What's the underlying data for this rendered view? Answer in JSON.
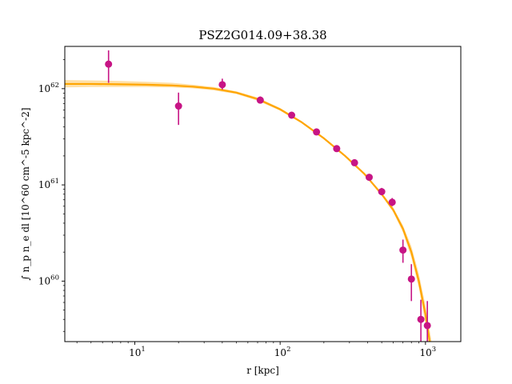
{
  "chart_data": {
    "type": "scatter",
    "title": "PSZ2G014.09+38.38",
    "xlabel": "r [kpc]",
    "ylabel": "∫ n_p n_e dl [10^60 cm^-5 kpc^-2]",
    "xscale": "log",
    "yscale": "log",
    "xlim": [
      3.3,
      1750
    ],
    "ylim": [
      2.35e+59,
      2.75e+62
    ],
    "xticks": [
      {
        "value": 10,
        "label": "10",
        "exp": "1"
      },
      {
        "value": 100,
        "label": "10",
        "exp": "2"
      },
      {
        "value": 1000,
        "label": "10",
        "exp": "3"
      }
    ],
    "yticks": [
      {
        "value": 1e+60,
        "label": "10",
        "exp": "60"
      },
      {
        "value": 1e+61,
        "label": "10",
        "exp": "61"
      },
      {
        "value": 1e+62,
        "label": "10",
        "exp": "62"
      }
    ],
    "data_color": "#c71585",
    "model_color": "#ffa500",
    "data_points": [
      {
        "x": 6.6,
        "y": 1.8e+62,
        "ylo": 1.15e+62,
        "yhi": 2.5e+62
      },
      {
        "x": 20,
        "y": 6.6e+61,
        "ylo": 4.2e+61,
        "yhi": 9.1e+61
      },
      {
        "x": 40,
        "y": 1.1e+62,
        "ylo": 9.8e+61,
        "yhi": 1.27e+62
      },
      {
        "x": 73,
        "y": 7.6e+61,
        "ylo": 7e+61,
        "yhi": 8.3e+61
      },
      {
        "x": 120,
        "y": 5.3e+61,
        "ylo": 5e+61,
        "yhi": 5.6e+61
      },
      {
        "x": 178,
        "y": 3.55e+61,
        "ylo": 3.4e+61,
        "yhi": 3.7e+61
      },
      {
        "x": 245,
        "y": 2.38e+61,
        "ylo": 2.28e+61,
        "yhi": 2.48e+61
      },
      {
        "x": 325,
        "y": 1.7e+61,
        "ylo": 1.62e+61,
        "yhi": 1.78e+61
      },
      {
        "x": 410,
        "y": 1.2e+61,
        "ylo": 1.13e+61,
        "yhi": 1.27e+61
      },
      {
        "x": 500,
        "y": 8.5e+60,
        "ylo": 7.8e+60,
        "yhi": 9.3e+60
      },
      {
        "x": 590,
        "y": 6.6e+60,
        "ylo": 6e+60,
        "yhi": 7.3e+60
      },
      {
        "x": 700,
        "y": 2.1e+60,
        "ylo": 1.55e+60,
        "yhi": 2.7e+60
      },
      {
        "x": 800,
        "y": 1.05e+60,
        "ylo": 6.2e+59,
        "yhi": 1.5e+60
      },
      {
        "x": 930,
        "y": 4e+59,
        "ylo": 2.35e+59,
        "yhi": 6.4e+59
      },
      {
        "x": 1030,
        "y": 3.45e+59,
        "ylo": 2.35e+59,
        "yhi": 6.2e+59
      }
    ],
    "model": {
      "x": [
        3.3,
        5,
        8,
        12,
        18,
        25,
        35,
        50,
        70,
        100,
        140,
        200,
        280,
        380,
        500,
        600,
        700,
        800,
        900,
        1000,
        1100
      ],
      "y": [
        1.12e+62,
        1.12e+62,
        1.11e+62,
        1.1e+62,
        1.08e+62,
        1.05e+62,
        1e+62,
        9.1e+61,
        7.8e+61,
        6.1e+61,
        4.5e+61,
        3.05e+61,
        2e+61,
        1.3e+61,
        8e+60,
        5.5e+60,
        3.5e+60,
        2e+60,
        1e+60,
        4.5e+59,
        1.8e+59
      ],
      "ylo": [
        1.03e+62,
        1.04e+62,
        1.04e+62,
        1.04e+62,
        1.03e+62,
        1.01e+62,
        9.6e+61,
        8.8e+61,
        7.5e+61,
        5.9e+61,
        4.4e+61,
        2.98e+61,
        1.95e+61,
        1.27e+61,
        7.7e+60,
        5.2e+60,
        3.2e+60,
        1.75e+60,
        8.5e+59,
        3.6e+59,
        1.3e+59
      ],
      "yhi": [
        1.23e+62,
        1.22e+62,
        1.2e+62,
        1.18e+62,
        1.15e+62,
        1.1e+62,
        1.04e+62,
        9.4e+61,
        8.1e+61,
        6.3e+61,
        4.6e+61,
        3.12e+61,
        2.05e+61,
        1.33e+61,
        8.3e+60,
        5.8e+60,
        3.8e+60,
        2.3e+60,
        1.2e+60,
        5.6e+59,
        2.4e+59
      ]
    }
  }
}
